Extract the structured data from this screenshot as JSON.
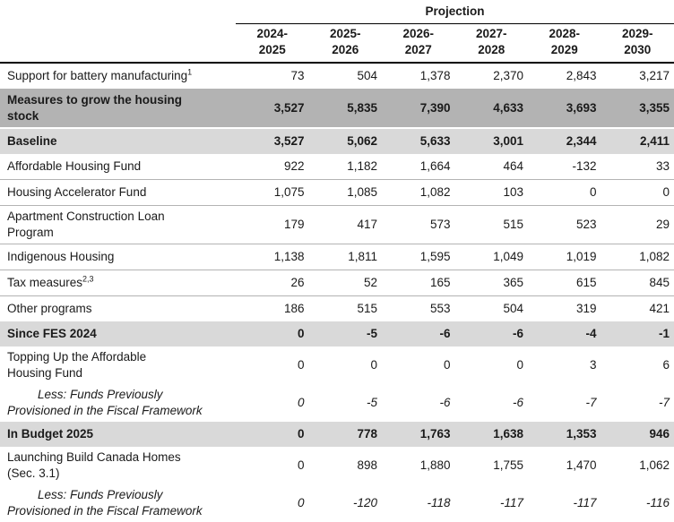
{
  "table": {
    "projection_label": "Projection",
    "columns": [
      "2024-\n2025",
      "2025-\n2026",
      "2026-\n2027",
      "2027-\n2028",
      "2028-\n2029",
      "2029-\n2030"
    ],
    "colors": {
      "dark_row_bg": "#b3b3b3",
      "light_row_bg": "#d9d9d9",
      "separator": "#b3b3b3",
      "header_rule": "#000000",
      "text": "#1a1a1a"
    },
    "rows": [
      {
        "label": "Support for battery manufacturing",
        "sup": "1",
        "values": [
          "73",
          "504",
          "1,378",
          "2,370",
          "2,843",
          "3,217"
        ],
        "style": "normal",
        "sep": true
      },
      {
        "label": "Measures to grow the housing\nstock",
        "values": [
          "3,527",
          "5,835",
          "7,390",
          "4,633",
          "3,693",
          "3,355"
        ],
        "style": "dark",
        "sep": false
      },
      {
        "label": "Baseline",
        "values": [
          "3,527",
          "5,062",
          "5,633",
          "3,001",
          "2,344",
          "2,411"
        ],
        "style": "light",
        "sep": false
      },
      {
        "label": "Affordable Housing Fund",
        "values": [
          "922",
          "1,182",
          "1,664",
          "464",
          "-132",
          "33"
        ],
        "style": "normal",
        "sep": true
      },
      {
        "label": "Housing Accelerator Fund",
        "values": [
          "1,075",
          "1,085",
          "1,082",
          "103",
          "0",
          "0"
        ],
        "style": "normal",
        "sep": true
      },
      {
        "label": "Apartment Construction Loan\nProgram",
        "values": [
          "179",
          "417",
          "573",
          "515",
          "523",
          "29"
        ],
        "style": "normal",
        "sep": true
      },
      {
        "label": "Indigenous Housing",
        "values": [
          "1,138",
          "1,811",
          "1,595",
          "1,049",
          "1,019",
          "1,082"
        ],
        "style": "normal",
        "sep": true
      },
      {
        "label": "Tax measures",
        "sup": "2,3",
        "values": [
          "26",
          "52",
          "165",
          "365",
          "615",
          "845"
        ],
        "style": "normal",
        "sep": true
      },
      {
        "label": "Other programs",
        "values": [
          "186",
          "515",
          "553",
          "504",
          "319",
          "421"
        ],
        "style": "normal",
        "sep": false
      },
      {
        "label": "Since FES 2024",
        "values": [
          "0",
          "-5",
          "-6",
          "-6",
          "-4",
          "-1"
        ],
        "style": "light",
        "sep": false
      },
      {
        "label": "Topping Up the Affordable\nHousing Fund",
        "values": [
          "0",
          "0",
          "0",
          "0",
          "3",
          "6"
        ],
        "style": "normal",
        "sep": false
      },
      {
        "label": "Less: Funds Previously\nProvisioned in the Fiscal Framework",
        "values": [
          "0",
          "-5",
          "-6",
          "-6",
          "-7",
          "-7"
        ],
        "style": "less",
        "sep": false
      },
      {
        "label": "In Budget 2025",
        "values": [
          "0",
          "778",
          "1,763",
          "1,638",
          "1,353",
          "946"
        ],
        "style": "light",
        "sep": false
      },
      {
        "label": "Launching Build Canada Homes\n(Sec. 3.1)",
        "values": [
          "0",
          "898",
          "1,880",
          "1,755",
          "1,470",
          "1,062"
        ],
        "style": "normal",
        "sep": false
      },
      {
        "label": "Less: Funds Previously\nProvisioned in the Fiscal Framework",
        "values": [
          "0",
          "-120",
          "-118",
          "-117",
          "-117",
          "-116"
        ],
        "style": "less",
        "sep": false
      }
    ]
  }
}
